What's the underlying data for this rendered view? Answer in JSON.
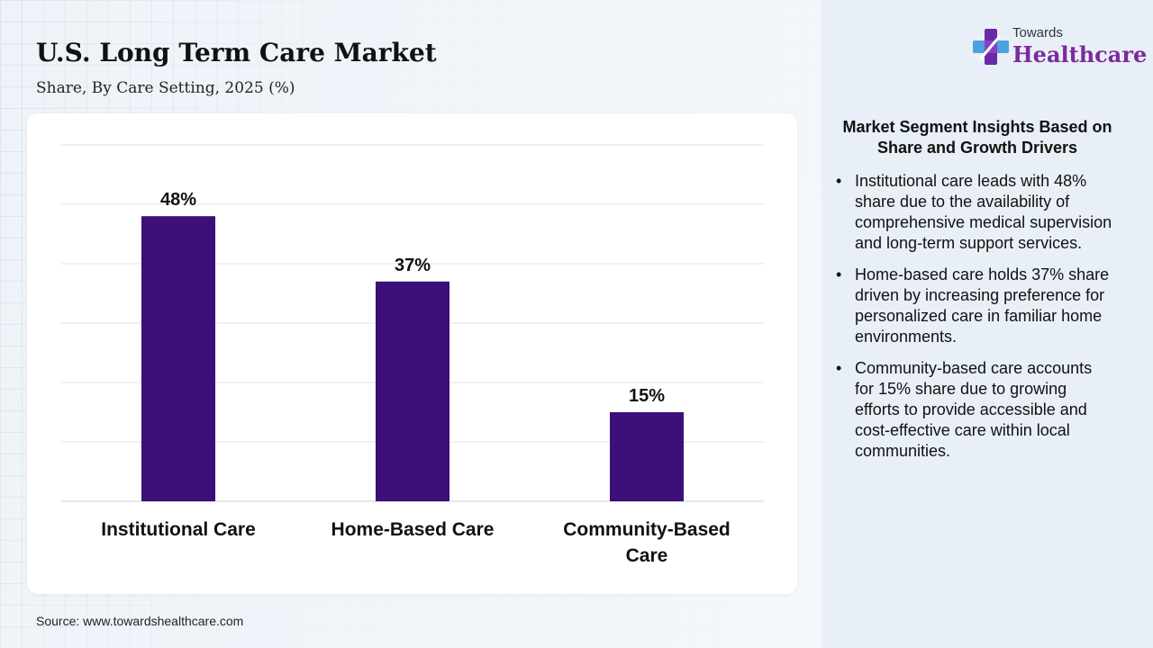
{
  "header": {
    "title": "U.S. Long Term Care Market",
    "subtitle": "Share, By Care Setting, 2025 (%)"
  },
  "logo": {
    "small": "Towards",
    "big": "Healthcare",
    "icon": "plus-cross-icon"
  },
  "chart_data": {
    "type": "bar",
    "categories": [
      [
        "Institutional Care"
      ],
      [
        "Home-Based Care"
      ],
      [
        "Community-Based",
        "Care"
      ]
    ],
    "values": [
      48,
      37,
      15
    ],
    "labels": [
      "48%",
      "37%",
      "15%"
    ],
    "ylim": [
      0,
      60
    ],
    "grid": true,
    "bar_color": "#3d0f78"
  },
  "insights": {
    "title": "Market Segment Insights Based on Share and Growth Drivers",
    "items": [
      "Institutional care leads with 48% share due to the availability of comprehensive medical supervision and long-term support services.",
      "Home-based care holds 37% share driven by increasing preference for personalized care in familiar home environments.",
      "Community-based care accounts for 15% share due to growing efforts to provide accessible and cost-effective care within local communities."
    ]
  },
  "footer": {
    "source": "Source: www.towardshealthcare.com"
  }
}
